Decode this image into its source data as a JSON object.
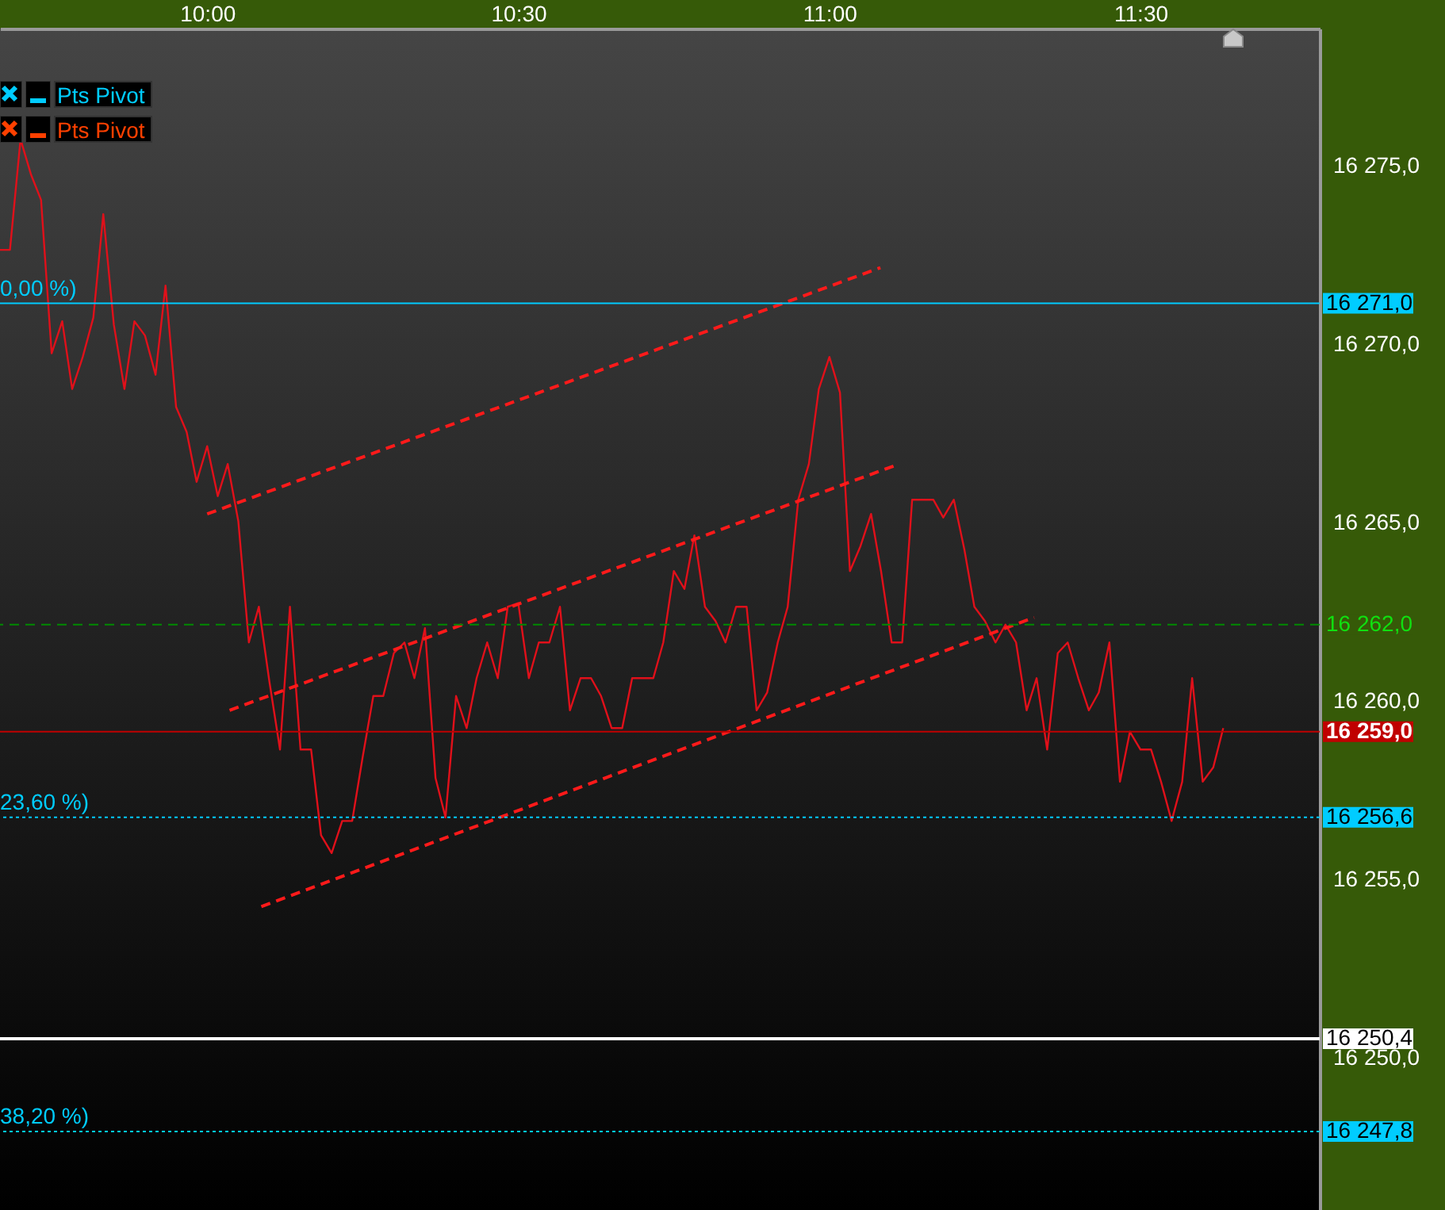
{
  "chart_data": {
    "type": "line",
    "xlim": [
      9.667,
      11.788
    ],
    "xticks": [
      {
        "value": 10,
        "label": "10:00"
      },
      {
        "value": 10.5,
        "label": "10:30"
      },
      {
        "value": 11,
        "label": "11:00"
      },
      {
        "value": 11.5,
        "label": "11:30"
      }
    ],
    "ylim": [
      16245.6,
      16278.7
    ],
    "yticks": [
      {
        "value": 16250,
        "label": "16 250,0"
      },
      {
        "value": 16255,
        "label": "16 255,0"
      },
      {
        "value": 16260,
        "label": "16 260,0"
      },
      {
        "value": 16265,
        "label": "16 265,0"
      },
      {
        "value": 16270,
        "label": "16 270,0"
      },
      {
        "value": 16275,
        "label": "16 275,0"
      }
    ],
    "series": [
      {
        "color": "#e0101a",
        "x": [
          9.667,
          9.683,
          9.7,
          9.717,
          9.733,
          9.75,
          9.767,
          9.783,
          9.8,
          9.817,
          9.833,
          9.85,
          9.867,
          9.883,
          9.9,
          9.917,
          9.933,
          9.95,
          9.967,
          9.983,
          10.0,
          10.017,
          10.033,
          10.05,
          10.067,
          10.083,
          10.1,
          10.117,
          10.133,
          10.15,
          10.167,
          10.183,
          10.2,
          10.217,
          10.233,
          10.25,
          10.267,
          10.283,
          10.3,
          10.317,
          10.333,
          10.35,
          10.367,
          10.383,
          10.4,
          10.417,
          10.433,
          10.45,
          10.467,
          10.483,
          10.5,
          10.517,
          10.533,
          10.55,
          10.567,
          10.583,
          10.6,
          10.617,
          10.633,
          10.65,
          10.667,
          10.683,
          10.7,
          10.717,
          10.733,
          10.75,
          10.767,
          10.783,
          10.8,
          10.817,
          10.833,
          10.85,
          10.867,
          10.883,
          10.9,
          10.917,
          10.933,
          10.95,
          10.967,
          10.983,
          11.0,
          11.017,
          11.033,
          11.05,
          11.067,
          11.083,
          11.1,
          11.117,
          11.133,
          11.15,
          11.167,
          11.183,
          11.2,
          11.217,
          11.233,
          11.25,
          11.267,
          11.283,
          11.3,
          11.317,
          11.333,
          11.35,
          11.367,
          11.383,
          11.4,
          11.417,
          11.433,
          11.45,
          11.467,
          11.483,
          11.5,
          11.517,
          11.533,
          11.55,
          11.567,
          11.583,
          11.6,
          11.617,
          11.633
        ],
        "values": [
          16272.5,
          16272.5,
          16275.6,
          16274.6,
          16273.9,
          16269.6,
          16270.5,
          16268.6,
          16269.5,
          16270.6,
          16273.5,
          16270.4,
          16268.6,
          16270.5,
          16270.1,
          16269.0,
          16271.5,
          16268.1,
          16267.4,
          16266.0,
          16267.0,
          16265.6,
          16266.5,
          16264.9,
          16261.5,
          16262.5,
          16260.4,
          16258.5,
          16262.5,
          16258.5,
          16258.5,
          16256.1,
          16255.6,
          16256.5,
          16256.5,
          16258.3,
          16260.0,
          16260.0,
          16261.2,
          16261.5,
          16260.5,
          16261.9,
          16257.7,
          16256.6,
          16260.0,
          16259.1,
          16260.5,
          16261.5,
          16260.5,
          16262.5,
          16262.6,
          16260.5,
          16261.5,
          16261.5,
          16262.5,
          16259.6,
          16260.5,
          16260.5,
          16260.0,
          16259.1,
          16259.1,
          16260.5,
          16260.5,
          16260.5,
          16261.5,
          16263.5,
          16263.0,
          16264.5,
          16262.5,
          16262.1,
          16261.5,
          16262.5,
          16262.5,
          16259.6,
          16260.1,
          16261.5,
          16262.5,
          16265.5,
          16266.5,
          16268.6,
          16269.5,
          16268.5,
          16263.5,
          16264.2,
          16265.1,
          16263.5,
          16261.5,
          16261.5,
          16265.5,
          16265.5,
          16265.5,
          16265.0,
          16265.5,
          16264.1,
          16262.5,
          16262.1,
          16261.5,
          16262.0,
          16261.5,
          16259.6,
          16260.5,
          16258.5,
          16261.2,
          16261.5,
          16260.5,
          16259.6,
          16260.1,
          16261.5,
          16257.6,
          16259.0,
          16258.5,
          16258.5,
          16257.6,
          16256.5,
          16257.6,
          16260.5,
          16257.6,
          16258.0,
          16259.1
        ]
      },
      {
        "type": "line",
        "line_style": "dashed",
        "color": "#ff1a1a",
        "x": [
          10.0,
          11.082
        ],
        "values": [
          16265.1,
          16272.0
        ]
      },
      {
        "type": "line",
        "line_style": "dashed",
        "color": "#ff1a1a",
        "x": [
          10.036,
          11.112
        ],
        "values": [
          16259.6,
          16266.5
        ]
      },
      {
        "type": "line",
        "line_style": "dashed",
        "color": "#ff1a1a",
        "x": [
          10.087,
          11.329
        ],
        "values": [
          16254.1,
          16262.2
        ]
      }
    ],
    "ref_lines": [
      {
        "axis": "y",
        "value": 16271.0,
        "label": "16 271,0",
        "color": "#00ccff",
        "line_style": "solid"
      },
      {
        "axis": "y",
        "value": 16262.0,
        "label": "16 262,0",
        "color": "#008a00",
        "line_style": "dashed"
      },
      {
        "axis": "y",
        "value": 16259.0,
        "label": "16 259,0",
        "color": "#c00000",
        "line_style": "solid"
      },
      {
        "axis": "y",
        "value": 16256.6,
        "label": "16 256,6",
        "color": "#00ccff",
        "line_style": "dotted"
      },
      {
        "axis": "y",
        "value": 16250.4,
        "label": "16 250,4",
        "color": "#ffffff",
        "line_style": "solid"
      },
      {
        "axis": "y",
        "value": 16247.8,
        "label": "16 247,8",
        "color": "#00ccff",
        "line_style": "dotted"
      }
    ],
    "annotations": [
      "Pts Pivot",
      "Pts Pivot",
      {
        "text": "0,00 %)",
        "y": 16271.0
      },
      {
        "text": "23,60 %)",
        "y": 16256.6
      },
      {
        "text": "38,20 %)",
        "y": 16247.8
      }
    ]
  }
}
